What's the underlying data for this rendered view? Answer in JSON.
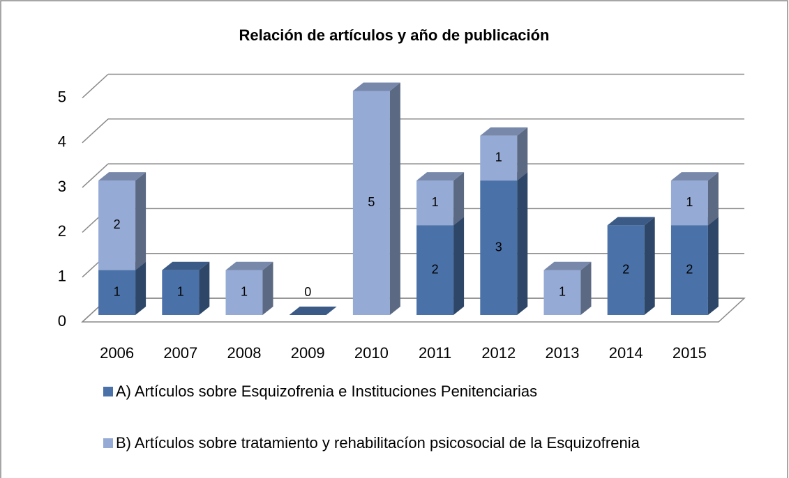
{
  "chart_data": {
    "type": "bar3d_stacked",
    "title": "Relación de artículos y año de publicación",
    "categories": [
      "2006",
      "2007",
      "2008",
      "2009",
      "2010",
      "2011",
      "2012",
      "2013",
      "2014",
      "2015"
    ],
    "series": [
      {
        "name": "A) Artículos sobre Esquizofrenia e Instituciones Penitenciarias",
        "color": "#4a72a8",
        "values": [
          1,
          1,
          null,
          0,
          null,
          2,
          3,
          null,
          2,
          2
        ]
      },
      {
        "name": "B) Artículos sobre tratamiento y rehabilitacíon psicosocial de la Esquizofrenia",
        "color": "#95aad4",
        "values": [
          2,
          null,
          1,
          null,
          5,
          1,
          1,
          1,
          null,
          1
        ]
      }
    ],
    "ylim": [
      0,
      5
    ],
    "yticks": [
      0,
      1,
      2,
      3,
      4,
      5
    ],
    "grid": true,
    "legend": "bottom"
  }
}
